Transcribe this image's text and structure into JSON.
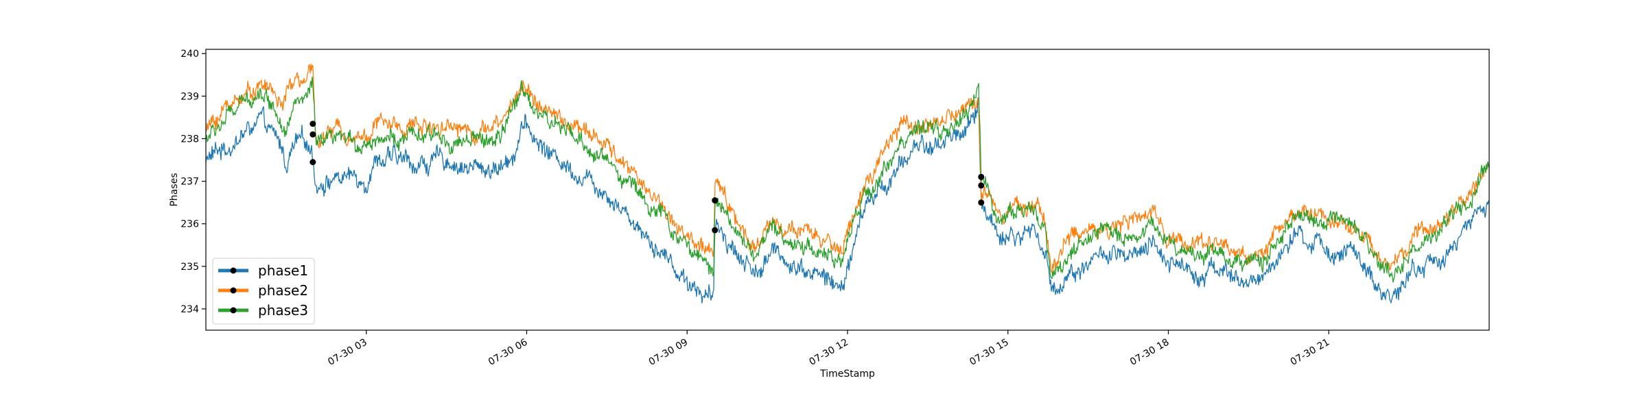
{
  "chart_data": {
    "type": "line",
    "title": "",
    "xlabel": "TimeStamp",
    "ylabel": "Phases",
    "x_range_hours": [
      0,
      24
    ],
    "xlim_labels": [
      "07-30 00:00",
      "07-31 00:00"
    ],
    "ylim": [
      233.5,
      240.1
    ],
    "yticks": [
      234,
      235,
      236,
      237,
      238,
      239,
      240
    ],
    "xticks": [
      {
        "hour": 3,
        "label": "07-30 03"
      },
      {
        "hour": 6,
        "label": "07-30 06"
      },
      {
        "hour": 9,
        "label": "07-30 09"
      },
      {
        "hour": 12,
        "label": "07-30 12"
      },
      {
        "hour": 15,
        "label": "07-30 15"
      },
      {
        "hour": 18,
        "label": "07-30 18"
      },
      {
        "hour": 21,
        "label": "07-30 21"
      }
    ],
    "grid": false,
    "legend_position": "lower-left",
    "series": [
      {
        "name": "phase1",
        "color": "#1f77b4",
        "noise": 0.3,
        "points": [
          [
            0,
            237.5
          ],
          [
            0.5,
            237.9
          ],
          [
            0.8,
            238.2
          ],
          [
            1.0,
            238.4
          ],
          [
            1.2,
            238.1
          ],
          [
            1.4,
            237.8
          ],
          [
            1.5,
            237.4
          ],
          [
            1.7,
            237.9
          ],
          [
            1.9,
            237.8
          ],
          [
            2.0,
            237.7
          ],
          [
            2.05,
            237.0
          ],
          [
            2.5,
            237.1
          ],
          [
            3.0,
            237.1
          ],
          [
            3.2,
            237.6
          ],
          [
            3.5,
            237.5
          ],
          [
            4.0,
            237.4
          ],
          [
            4.5,
            237.5
          ],
          [
            5.0,
            237.3
          ],
          [
            5.5,
            237.3
          ],
          [
            5.8,
            237.8
          ],
          [
            5.9,
            238.4
          ],
          [
            6.2,
            237.9
          ],
          [
            6.5,
            237.6
          ],
          [
            7.0,
            237.2
          ],
          [
            7.5,
            236.8
          ],
          [
            8.0,
            236.1
          ],
          [
            8.5,
            235.4
          ],
          [
            8.9,
            234.8
          ],
          [
            9.3,
            234.4
          ],
          [
            9.5,
            234.2
          ],
          [
            9.52,
            235.9
          ],
          [
            9.7,
            235.8
          ],
          [
            10.0,
            235.2
          ],
          [
            10.3,
            234.9
          ],
          [
            10.6,
            235.3
          ],
          [
            11.0,
            235.1
          ],
          [
            11.5,
            234.8
          ],
          [
            11.9,
            234.4
          ],
          [
            12.0,
            235.0
          ],
          [
            12.3,
            236.3
          ],
          [
            12.6,
            236.8
          ],
          [
            13.0,
            237.3
          ],
          [
            13.3,
            237.9
          ],
          [
            13.6,
            237.8
          ],
          [
            14.0,
            238.1
          ],
          [
            14.3,
            238.3
          ],
          [
            14.45,
            238.8
          ],
          [
            14.5,
            236.5
          ],
          [
            14.8,
            235.8
          ],
          [
            15.2,
            235.7
          ],
          [
            15.5,
            235.9
          ],
          [
            15.7,
            235.3
          ],
          [
            15.8,
            234.4
          ],
          [
            16.2,
            234.9
          ],
          [
            16.8,
            235.3
          ],
          [
            17.3,
            235.1
          ],
          [
            17.7,
            235.4
          ],
          [
            18.0,
            235.2
          ],
          [
            18.5,
            234.9
          ],
          [
            19.0,
            235.0
          ],
          [
            19.4,
            234.5
          ],
          [
            19.8,
            234.8
          ],
          [
            20.2,
            235.5
          ],
          [
            20.5,
            235.6
          ],
          [
            21.0,
            235.4
          ],
          [
            21.5,
            235.3
          ],
          [
            21.9,
            234.3
          ],
          [
            22.2,
            234.4
          ],
          [
            22.6,
            234.9
          ],
          [
            23.0,
            235.1
          ],
          [
            23.4,
            235.6
          ],
          [
            23.7,
            236.0
          ],
          [
            24.0,
            236.6
          ]
        ]
      },
      {
        "name": "phase2",
        "color": "#ff7f0e",
        "noise": 0.27,
        "points": [
          [
            0,
            238.2
          ],
          [
            0.5,
            238.9
          ],
          [
            0.8,
            239.1
          ],
          [
            1.0,
            239.3
          ],
          [
            1.2,
            239.2
          ],
          [
            1.4,
            238.8
          ],
          [
            1.5,
            239.0
          ],
          [
            1.7,
            239.4
          ],
          [
            1.9,
            239.3
          ],
          [
            2.0,
            239.6
          ],
          [
            2.05,
            238.0
          ],
          [
            2.5,
            238.2
          ],
          [
            3.0,
            238.1
          ],
          [
            3.2,
            238.4
          ],
          [
            3.5,
            238.3
          ],
          [
            4.0,
            238.3
          ],
          [
            4.5,
            238.4
          ],
          [
            5.0,
            238.2
          ],
          [
            5.5,
            238.3
          ],
          [
            5.8,
            239.0
          ],
          [
            5.9,
            239.3
          ],
          [
            6.2,
            238.9
          ],
          [
            6.5,
            238.5
          ],
          [
            7.0,
            238.2
          ],
          [
            7.5,
            237.8
          ],
          [
            8.0,
            237.2
          ],
          [
            8.5,
            236.5
          ],
          [
            8.9,
            235.8
          ],
          [
            9.3,
            235.4
          ],
          [
            9.5,
            235.1
          ],
          [
            9.52,
            236.9
          ],
          [
            9.7,
            236.8
          ],
          [
            10.0,
            235.9
          ],
          [
            10.3,
            235.5
          ],
          [
            10.6,
            236.1
          ],
          [
            11.0,
            235.8
          ],
          [
            11.5,
            235.6
          ],
          [
            11.9,
            235.4
          ],
          [
            12.0,
            235.9
          ],
          [
            12.3,
            236.8
          ],
          [
            12.6,
            237.4
          ],
          [
            13.0,
            238.3
          ],
          [
            13.3,
            238.3
          ],
          [
            13.6,
            238.4
          ],
          [
            14.0,
            238.5
          ],
          [
            14.3,
            238.8
          ],
          [
            14.45,
            239.0
          ],
          [
            14.5,
            236.8
          ],
          [
            14.8,
            236.4
          ],
          [
            15.2,
            236.5
          ],
          [
            15.5,
            236.4
          ],
          [
            15.7,
            236.1
          ],
          [
            15.8,
            235.0
          ],
          [
            16.2,
            235.7
          ],
          [
            16.8,
            236.0
          ],
          [
            17.3,
            236.0
          ],
          [
            17.7,
            236.2
          ],
          [
            18.0,
            235.8
          ],
          [
            18.5,
            235.5
          ],
          [
            19.0,
            235.6
          ],
          [
            19.4,
            235.2
          ],
          [
            19.8,
            235.4
          ],
          [
            20.2,
            236.0
          ],
          [
            20.5,
            236.3
          ],
          [
            21.0,
            236.2
          ],
          [
            21.5,
            236.0
          ],
          [
            21.9,
            235.2
          ],
          [
            22.2,
            235.0
          ],
          [
            22.6,
            235.6
          ],
          [
            23.0,
            235.9
          ],
          [
            23.4,
            236.4
          ],
          [
            23.7,
            236.8
          ],
          [
            24.0,
            237.5
          ]
        ]
      },
      {
        "name": "phase3",
        "color": "#2ca02c",
        "noise": 0.27,
        "points": [
          [
            0,
            238.0
          ],
          [
            0.5,
            238.6
          ],
          [
            0.8,
            238.9
          ],
          [
            1.0,
            239.2
          ],
          [
            1.2,
            238.9
          ],
          [
            1.4,
            238.5
          ],
          [
            1.5,
            238.4
          ],
          [
            1.7,
            238.9
          ],
          [
            1.9,
            238.9
          ],
          [
            2.0,
            239.3
          ],
          [
            2.05,
            237.8
          ],
          [
            2.5,
            237.9
          ],
          [
            3.0,
            237.9
          ],
          [
            3.2,
            238.1
          ],
          [
            3.5,
            238.0
          ],
          [
            4.0,
            238.0
          ],
          [
            4.5,
            238.0
          ],
          [
            5.0,
            237.9
          ],
          [
            5.5,
            238.0
          ],
          [
            5.8,
            238.8
          ],
          [
            5.9,
            239.2
          ],
          [
            6.2,
            238.7
          ],
          [
            6.5,
            238.3
          ],
          [
            7.0,
            237.9
          ],
          [
            7.5,
            237.5
          ],
          [
            8.0,
            236.9
          ],
          [
            8.5,
            236.2
          ],
          [
            8.9,
            235.6
          ],
          [
            9.3,
            235.1
          ],
          [
            9.5,
            234.8
          ],
          [
            9.52,
            236.6
          ],
          [
            9.7,
            236.5
          ],
          [
            10.0,
            235.6
          ],
          [
            10.3,
            235.3
          ],
          [
            10.6,
            235.8
          ],
          [
            11.0,
            235.6
          ],
          [
            11.5,
            235.4
          ],
          [
            11.9,
            235.0
          ],
          [
            12.0,
            235.6
          ],
          [
            12.3,
            236.6
          ],
          [
            12.6,
            237.1
          ],
          [
            13.0,
            238.0
          ],
          [
            13.3,
            238.1
          ],
          [
            13.6,
            238.1
          ],
          [
            14.0,
            238.3
          ],
          [
            14.3,
            238.6
          ],
          [
            14.45,
            239.3
          ],
          [
            14.5,
            237.1
          ],
          [
            14.8,
            236.2
          ],
          [
            15.2,
            236.3
          ],
          [
            15.5,
            236.3
          ],
          [
            15.7,
            235.9
          ],
          [
            15.8,
            234.7
          ],
          [
            16.2,
            235.4
          ],
          [
            16.8,
            235.8
          ],
          [
            17.3,
            235.7
          ],
          [
            17.7,
            236.0
          ],
          [
            18.0,
            235.6
          ],
          [
            18.5,
            235.3
          ],
          [
            19.0,
            235.4
          ],
          [
            19.4,
            235.0
          ],
          [
            19.8,
            235.2
          ],
          [
            20.2,
            235.9
          ],
          [
            20.5,
            236.1
          ],
          [
            21.0,
            236.0
          ],
          [
            21.5,
            235.8
          ],
          [
            21.9,
            235.0
          ],
          [
            22.2,
            234.8
          ],
          [
            22.6,
            235.4
          ],
          [
            23.0,
            235.7
          ],
          [
            23.4,
            236.2
          ],
          [
            23.7,
            236.6
          ],
          [
            24.0,
            237.3
          ]
        ]
      }
    ],
    "markers": [
      {
        "hour": 2.0,
        "value": 238.35
      },
      {
        "hour": 2.0,
        "value": 238.1
      },
      {
        "hour": 2.0,
        "value": 237.45
      },
      {
        "hour": 9.52,
        "value": 236.55
      },
      {
        "hour": 9.52,
        "value": 235.85
      },
      {
        "hour": 14.5,
        "value": 237.1
      },
      {
        "hour": 14.5,
        "value": 236.9
      },
      {
        "hour": 14.5,
        "value": 236.5
      }
    ],
    "legend": [
      {
        "label": "phase1",
        "color": "#1f77b4"
      },
      {
        "label": "phase2",
        "color": "#ff7f0e"
      },
      {
        "label": "phase3",
        "color": "#2ca02c"
      }
    ]
  }
}
